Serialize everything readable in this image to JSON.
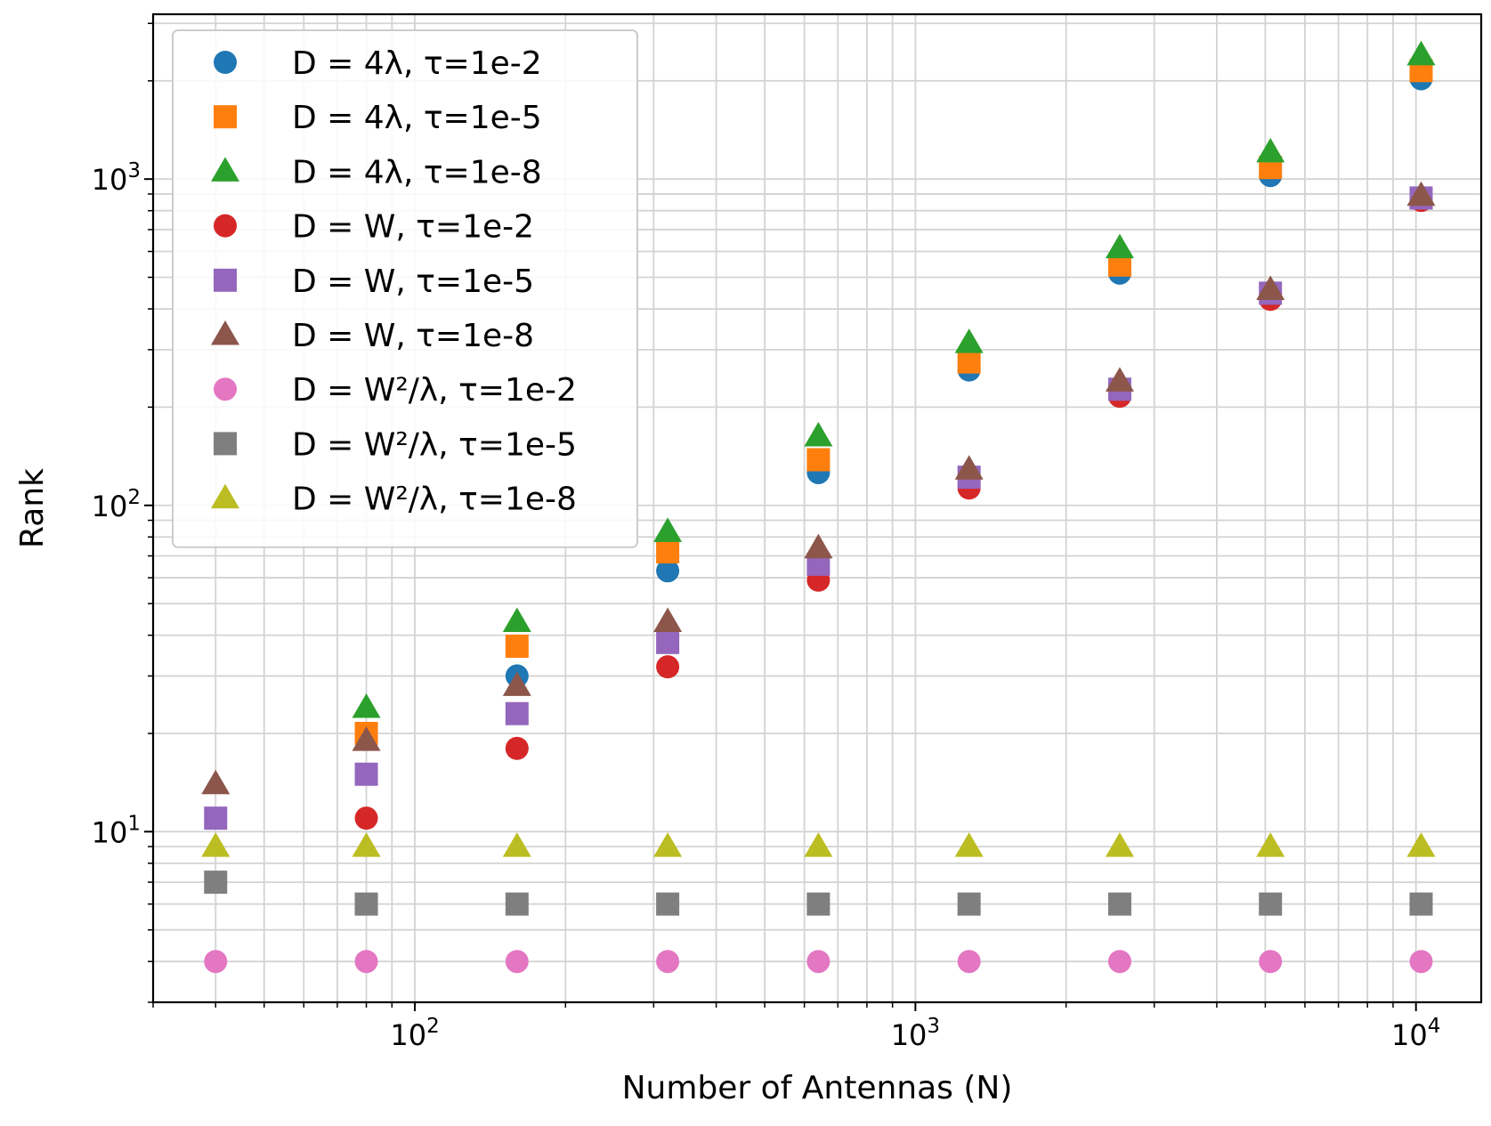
{
  "chart_data": {
    "type": "scatter",
    "xlabel": "Number of Antennas (N)",
    "ylabel": "Rank",
    "xscale": "log",
    "yscale": "log",
    "xlim": [
      30,
      13500
    ],
    "ylim": [
      3,
      3200
    ],
    "grid": true,
    "legend_position": "top-left",
    "x": [
      40,
      80,
      160,
      320,
      640,
      1280,
      2560,
      5120,
      10240
    ],
    "x_ticks": [
      {
        "value": 100,
        "base": "10",
        "exp": "2"
      },
      {
        "value": 1000,
        "base": "10",
        "exp": "3"
      },
      {
        "value": 10000,
        "base": "10",
        "exp": "4"
      }
    ],
    "y_ticks": [
      {
        "value": 10,
        "base": "10",
        "exp": "1"
      },
      {
        "value": 100,
        "base": "10",
        "exp": "2"
      },
      {
        "value": 1000,
        "base": "10",
        "exp": "3"
      }
    ],
    "series": [
      {
        "name": "D = 4λ, τ=1e-2",
        "marker": "circle",
        "color": "#1f77b4",
        "x": [
          160,
          320,
          640,
          1280,
          2560,
          5120,
          10240
        ],
        "values": [
          30,
          63,
          126,
          260,
          515,
          1025,
          2030
        ]
      },
      {
        "name": "D = 4λ, τ=1e-5",
        "marker": "square",
        "color": "#ff7f0e",
        "x": [
          80,
          160,
          320,
          640,
          1280,
          2560,
          5120,
          10240
        ],
        "values": [
          20,
          37,
          72,
          138,
          275,
          545,
          1085,
          2150
        ]
      },
      {
        "name": "D = 4λ, τ=1e-8",
        "marker": "triangle",
        "color": "#2ca02c",
        "x": [
          80,
          160,
          320,
          640,
          1280,
          2560,
          5120,
          10240
        ],
        "values": [
          24,
          44,
          83,
          163,
          315,
          615,
          1210,
          2400
        ]
      },
      {
        "name": "D = W, τ=1e-2",
        "marker": "circle",
        "color": "#d62728",
        "x": [
          80,
          160,
          320,
          640,
          1280,
          2560,
          5120,
          10240
        ],
        "values": [
          11,
          18,
          32,
          59,
          113,
          216,
          428,
          860
        ]
      },
      {
        "name": "D = W, τ=1e-5",
        "marker": "square",
        "color": "#9467bd",
        "x": [
          40,
          80,
          160,
          320,
          640,
          1280,
          2560,
          5120,
          10240
        ],
        "values": [
          11,
          15,
          23,
          38,
          66,
          122,
          227,
          447,
          875
        ]
      },
      {
        "name": "D = W, τ=1e-8",
        "marker": "triangle",
        "color": "#8c564b",
        "x": [
          40,
          80,
          160,
          320,
          640,
          1280,
          2560,
          5120,
          10240
        ],
        "values": [
          14,
          19,
          28,
          44,
          74,
          129,
          240,
          458,
          890
        ]
      },
      {
        "name": "D = W²/λ, τ=1e-2",
        "marker": "circle",
        "color": "#e377c2",
        "x": [
          40,
          80,
          160,
          320,
          640,
          1280,
          2560,
          5120,
          10240
        ],
        "values": [
          4,
          4,
          4,
          4,
          4,
          4,
          4,
          4,
          4
        ]
      },
      {
        "name": "D = W²/λ, τ=1e-5",
        "marker": "square",
        "color": "#7f7f7f",
        "x": [
          40,
          80,
          160,
          320,
          640,
          1280,
          2560,
          5120,
          10240
        ],
        "values": [
          7,
          6,
          6,
          6,
          6,
          6,
          6,
          6,
          6
        ]
      },
      {
        "name": "D = W²/λ, τ=1e-8",
        "marker": "triangle",
        "color": "#bcbd22",
        "x": [
          40,
          80,
          160,
          320,
          640,
          1280,
          2560,
          5120,
          10240
        ],
        "values": [
          9,
          9,
          9,
          9,
          9,
          9,
          9,
          9,
          9
        ]
      }
    ]
  }
}
